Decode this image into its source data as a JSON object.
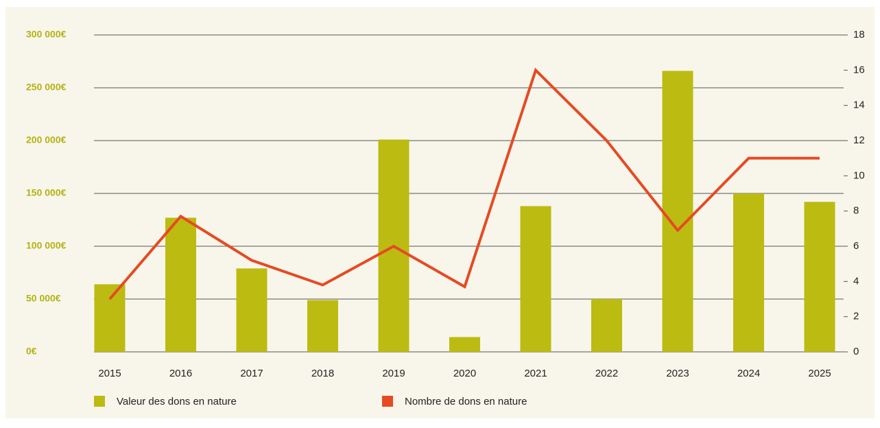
{
  "chart_data": {
    "type": "bar_line",
    "categories": [
      "2015",
      "2016",
      "2017",
      "2018",
      "2019",
      "2020",
      "2021",
      "2022",
      "2023",
      "2024",
      "2025"
    ],
    "series": [
      {
        "name": "Valeur des dons en nature",
        "color": "#bcbb12",
        "type": "bar",
        "values": [
          64000,
          127000,
          79000,
          49000,
          201000,
          14000,
          138000,
          50000,
          266000,
          150000,
          142000
        ]
      },
      {
        "name": "Nombre de dons en nature",
        "color": "#e64a24",
        "type": "line",
        "axis": "y2",
        "values": [
          3,
          7.7,
          5.2,
          3.8,
          6,
          3.7,
          16,
          12,
          6.9,
          11,
          11
        ]
      }
    ],
    "ylim": [
      0,
      300000
    ],
    "yticks": [
      {
        "value": 0,
        "label": "0€"
      },
      {
        "value": 50000,
        "label": "50 000€"
      },
      {
        "value": 100000,
        "label": "100 000€"
      },
      {
        "value": 150000,
        "label": "150 000€"
      },
      {
        "value": 200000,
        "label": "200 000€"
      },
      {
        "value": 250000,
        "label": "250 000€"
      },
      {
        "value": 300000,
        "label": "300 000€"
      }
    ],
    "y2lim": [
      0,
      18
    ],
    "y2ticks": [
      0,
      2,
      4,
      6,
      8,
      10,
      12,
      14,
      16,
      18
    ],
    "grid": true
  }
}
